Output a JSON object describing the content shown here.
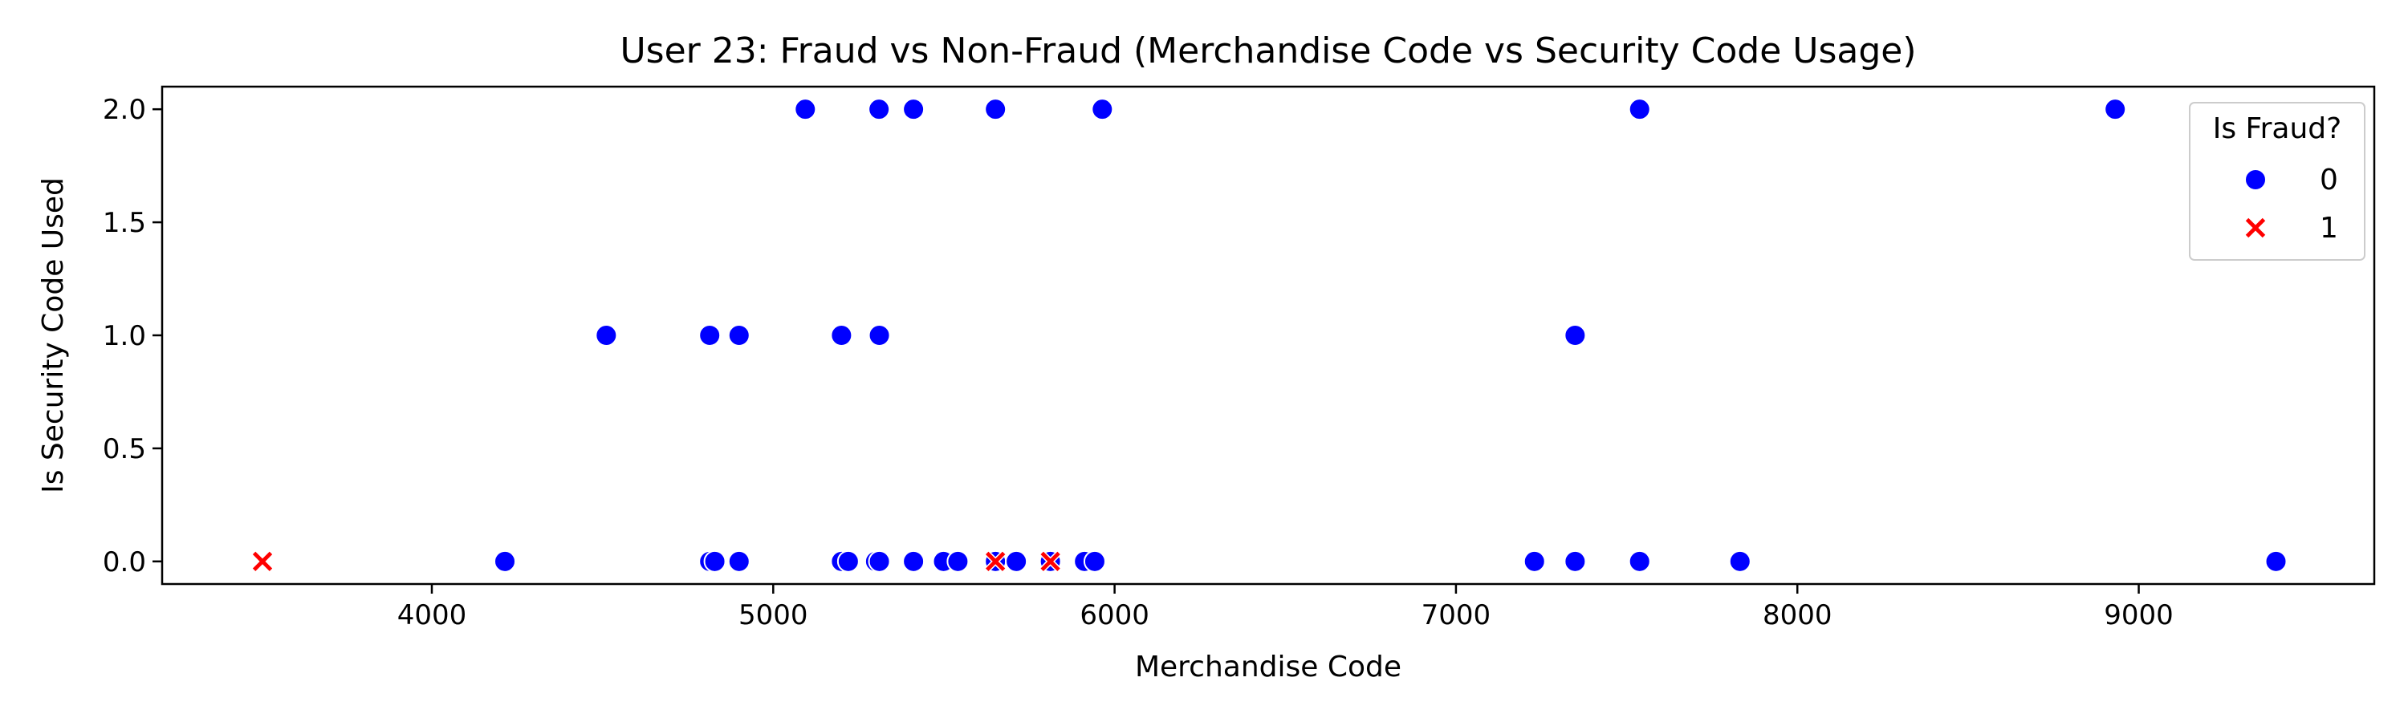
{
  "chart_data": {
    "type": "scatter",
    "title": "User 23: Fraud vs Non-Fraud (Merchandise Code vs Security Code Usage)",
    "xlabel": "Merchandise Code",
    "ylabel": "Is Security Code Used",
    "xlim": [
      3210,
      9690
    ],
    "ylim": [
      -0.1,
      2.1
    ],
    "xticks": [
      4000,
      5000,
      6000,
      7000,
      8000,
      9000
    ],
    "yticks": [
      0.0,
      0.5,
      1.0,
      1.5,
      2.0
    ],
    "ytick_labels": [
      "0.0",
      "0.5",
      "1.0",
      "1.5",
      "2.0"
    ],
    "grid": false,
    "legend": {
      "title": "Is Fraud?",
      "position": "top-right",
      "entries": [
        {
          "label": "0",
          "marker": "circle",
          "color": "#0000ff"
        },
        {
          "label": "1",
          "marker": "x",
          "color": "#ff0000"
        }
      ]
    },
    "series": [
      {
        "name": "0",
        "marker": "circle",
        "color": "#0000ff",
        "points": [
          [
            5094,
            2
          ],
          [
            5310,
            2
          ],
          [
            5411,
            2
          ],
          [
            5651,
            2
          ],
          [
            5964,
            2
          ],
          [
            7538,
            2
          ],
          [
            8931,
            2
          ],
          [
            4511,
            1
          ],
          [
            4814,
            1
          ],
          [
            4900,
            1
          ],
          [
            5200,
            1
          ],
          [
            5311,
            1
          ],
          [
            7349,
            1
          ],
          [
            4214,
            0
          ],
          [
            4814,
            0
          ],
          [
            4829,
            0
          ],
          [
            4900,
            0
          ],
          [
            5200,
            0
          ],
          [
            5220,
            0
          ],
          [
            5300,
            0
          ],
          [
            5311,
            0
          ],
          [
            5411,
            0
          ],
          [
            5499,
            0
          ],
          [
            5541,
            0
          ],
          [
            5651,
            0
          ],
          [
            5712,
            0
          ],
          [
            5812,
            0
          ],
          [
            5912,
            0
          ],
          [
            5942,
            0
          ],
          [
            7230,
            0
          ],
          [
            7349,
            0
          ],
          [
            7538,
            0
          ],
          [
            7832,
            0
          ],
          [
            9402,
            0
          ]
        ]
      },
      {
        "name": "1",
        "marker": "x",
        "color": "#ff0000",
        "points": [
          [
            3504,
            0
          ],
          [
            5651,
            0
          ],
          [
            5812,
            0
          ]
        ]
      }
    ]
  }
}
